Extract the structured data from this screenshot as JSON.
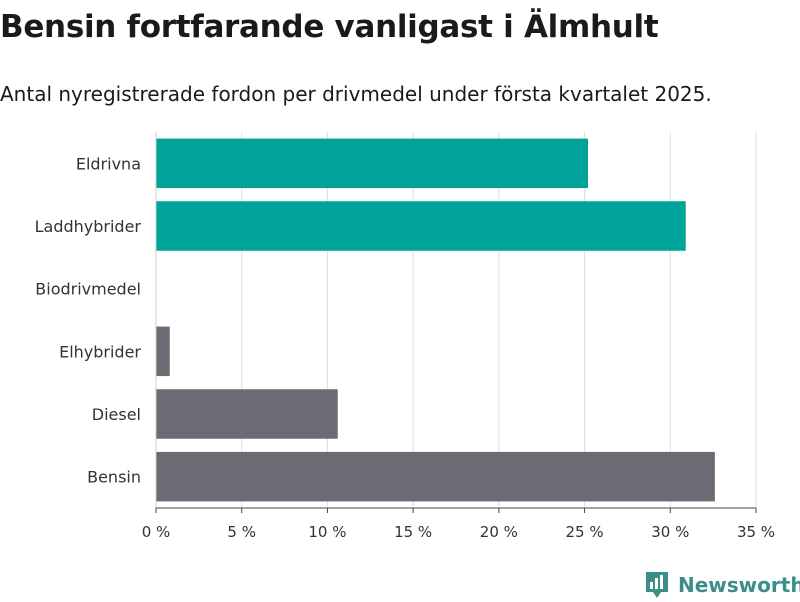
{
  "title": "Bensin fortfarande vanligast i Älmhult",
  "subtitle": "Antal nyregistrerade fordon per drivmedel under första kvartalet 2025.",
  "brand": {
    "name": "Newsworthy",
    "icon": "newsworthy-logo-icon"
  },
  "colors": {
    "accent": "#00a398",
    "secondary": "#6c6b73",
    "grid": "#dddddd"
  },
  "chart_data": {
    "type": "bar",
    "orientation": "horizontal",
    "title": "Bensin fortfarande vanligast i Älmhult",
    "subtitle": "Antal nyregistrerade fordon per drivmedel under första kvartalet 2025.",
    "categories": [
      "Eldrivna",
      "Laddhybrider",
      "Biodrivmedel",
      "Elhybrider",
      "Diesel",
      "Bensin"
    ],
    "values": [
      25.2,
      30.9,
      0,
      0.8,
      10.6,
      32.6
    ],
    "bar_colors": [
      "#00a398",
      "#00a398",
      "#6c6b73",
      "#6c6b73",
      "#6c6b73",
      "#6c6b73"
    ],
    "xlim": [
      0,
      35
    ],
    "xticks": [
      0,
      5,
      10,
      15,
      20,
      25,
      30,
      35
    ],
    "xtick_labels": [
      "0 %",
      "5 %",
      "10 %",
      "15 %",
      "20 %",
      "25 %",
      "30 %",
      "35 %"
    ],
    "xlabel": "",
    "ylabel": "",
    "grid": true
  }
}
